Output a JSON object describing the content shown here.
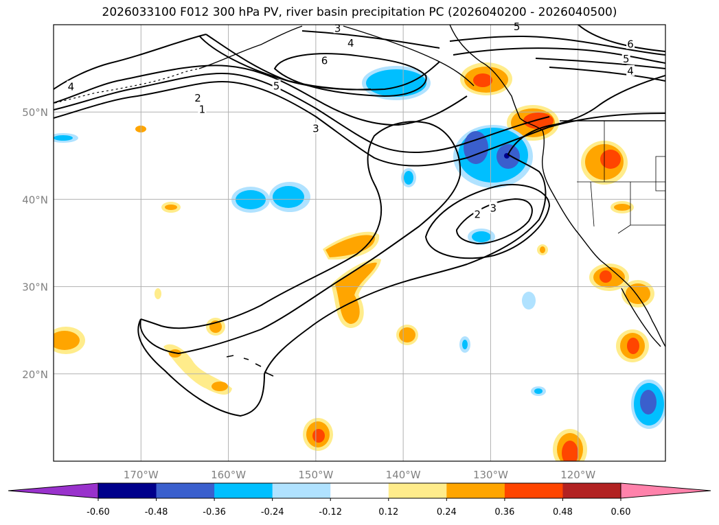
{
  "chart_data": {
    "type": "contour",
    "title": "2026033100 F012 300 hPa PV, river basin precipitation PC (2026040200 - 2026040500)",
    "lon_range": [
      -180,
      -110
    ],
    "lat_range": [
      10,
      60
    ],
    "lon_ticks": [
      -170,
      -160,
      -150,
      -140,
      -130,
      -120
    ],
    "lon_tick_labels": [
      "170°W",
      "160°W",
      "150°W",
      "140°W",
      "130°W",
      "120°W"
    ],
    "lat_ticks": [
      20,
      30,
      40,
      50
    ],
    "lat_tick_labels": [
      "20°N",
      "30°N",
      "40°N",
      "50°N"
    ],
    "grid": true,
    "pv_contour_labels": [
      {
        "text": "1",
        "lon": -163.0,
        "lat": 50.2
      },
      {
        "text": "2",
        "lon": -163.5,
        "lat": 51.5
      },
      {
        "text": "5",
        "lon": -154.5,
        "lat": 52.9
      },
      {
        "text": "3",
        "lon": -150.0,
        "lat": 48.0
      },
      {
        "text": "6",
        "lon": -149.0,
        "lat": 55.8
      },
      {
        "text": "4",
        "lon": -146.0,
        "lat": 57.8
      },
      {
        "text": "3",
        "lon": -147.5,
        "lat": 59.5
      },
      {
        "text": "5",
        "lon": -127.0,
        "lat": 59.7
      },
      {
        "text": "6",
        "lon": -114.0,
        "lat": 57.7
      },
      {
        "text": "5",
        "lon": -114.5,
        "lat": 56.0
      },
      {
        "text": "4",
        "lon": -114.0,
        "lat": 54.6
      },
      {
        "text": "4",
        "lon": -178.0,
        "lat": 52.8
      },
      {
        "text": "2",
        "lon": -131.5,
        "lat": 38.2
      },
      {
        "text": "3",
        "lon": -129.7,
        "lat": 38.9
      }
    ],
    "colorbar": {
      "ticks": [
        "-0.60",
        "-0.48",
        "-0.36",
        "-0.24",
        "-0.12",
        "0.12",
        "0.24",
        "0.36",
        "0.48",
        "0.60"
      ],
      "colors": [
        "#9932cc",
        "#00008b",
        "#3a5fcd",
        "#00bfff",
        "#b0e2ff",
        "#ffffff",
        "#ffec8b",
        "#ffa500",
        "#ff4500",
        "#b22222",
        "#ff82ab"
      ],
      "extend": "both"
    }
  }
}
